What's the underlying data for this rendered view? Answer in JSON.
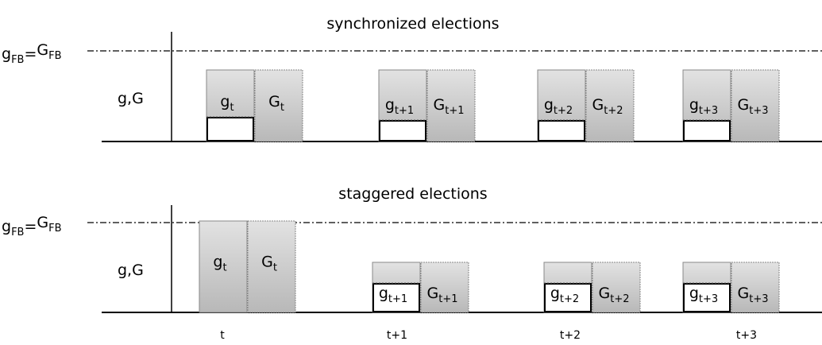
{
  "panels": [
    {
      "title": "synchronized elections",
      "reference": {
        "g": "g",
        "g_sub": "FB",
        "eq": "=",
        "G": "G",
        "G_sub": "FB"
      },
      "axis_label": "g,G",
      "pairs": [
        {
          "g": "g",
          "g_sub": "t",
          "G": "G",
          "G_sub": "t"
        },
        {
          "g": "g",
          "g_sub": "t+1",
          "G": "G",
          "G_sub": "t+1"
        },
        {
          "g": "g",
          "g_sub": "t+2",
          "G": "G",
          "G_sub": "t+2"
        },
        {
          "g": "g",
          "g_sub": "t+3",
          "G": "G",
          "G_sub": "t+3"
        }
      ]
    },
    {
      "title": "staggered elections",
      "reference": {
        "g": "g",
        "g_sub": "FB",
        "eq": "=",
        "G": "G",
        "G_sub": "FB"
      },
      "axis_label": "g,G",
      "pairs": [
        {
          "g": "g",
          "g_sub": "t",
          "G": "G",
          "G_sub": "t"
        },
        {
          "g": "g",
          "g_sub": "t+1",
          "G": "G",
          "G_sub": "t+1"
        },
        {
          "g": "g",
          "g_sub": "t+2",
          "G": "G",
          "G_sub": "t+2"
        },
        {
          "g": "g",
          "g_sub": "t+3",
          "G": "G",
          "G_sub": "t+3"
        }
      ]
    }
  ],
  "x_labels": [
    "t",
    "t+1",
    "t+2",
    "t+3"
  ]
}
